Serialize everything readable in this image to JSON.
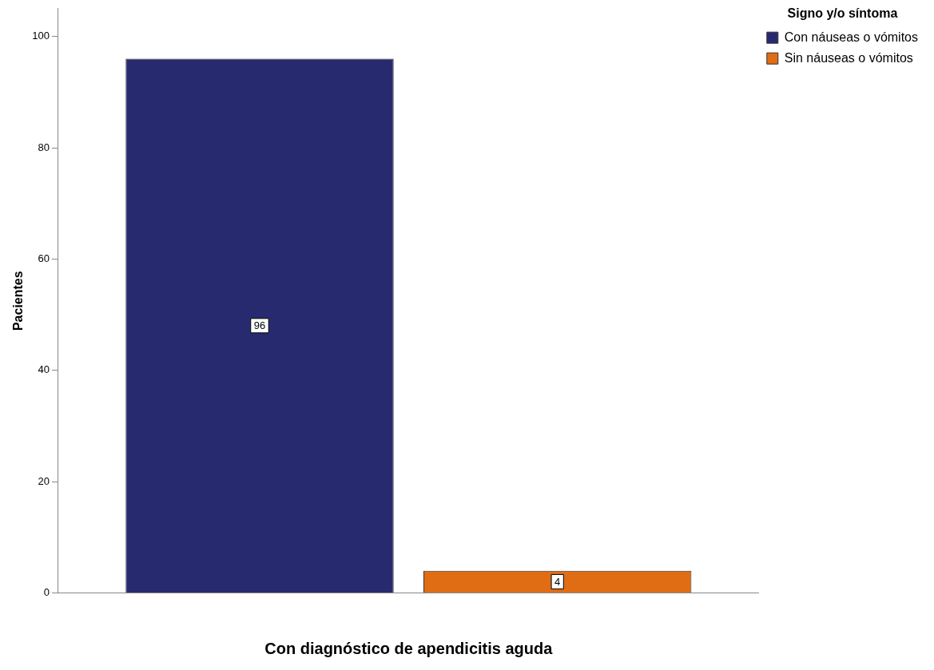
{
  "chart_data": {
    "type": "bar",
    "xlabel": "Con diagnóstico de apendicitis aguda",
    "ylabel": "Pacientes",
    "legend_title": "Signo y/o síntoma",
    "categories": [
      null
    ],
    "series": [
      {
        "name": "Con náuseas o vómitos",
        "color": "#272a6e",
        "values": [
          96
        ]
      },
      {
        "name": "Sin náuseas o vómitos",
        "color": "#e06d14",
        "values": [
          4
        ]
      }
    ],
    "ylim": [
      0,
      105
    ],
    "yticks": [
      0,
      20,
      40,
      60,
      80,
      100
    ],
    "grid": false,
    "legend": "top right",
    "data_labels": true
  }
}
